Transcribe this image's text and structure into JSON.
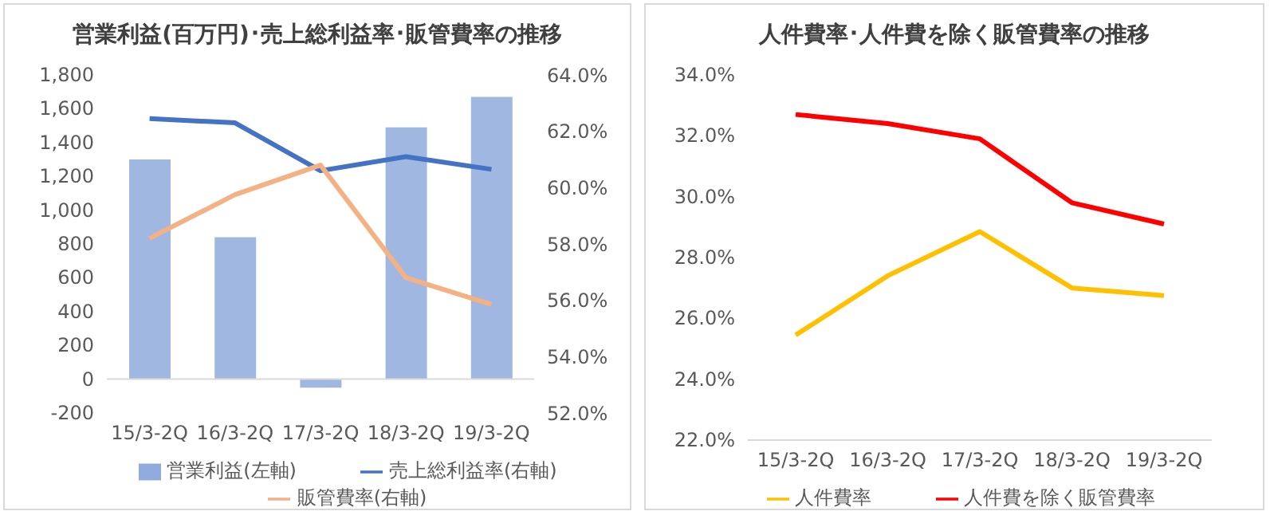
{
  "chart_data": [
    {
      "type": "bar",
      "title": "営業利益(百万円)･売上総利益率･販管費率の推移",
      "categories": [
        "15/3-2Q",
        "16/3-2Q",
        "17/3-2Q",
        "18/3-2Q",
        "19/3-2Q"
      ],
      "series": [
        {
          "name": "営業利益(左軸)",
          "color": "#8faadc",
          "values": [
            1300,
            840,
            -50,
            1490,
            1670
          ]
        },
        {
          "name": "売上総利益率(右軸)",
          "type": "line",
          "axis": "y2",
          "color": "#4472c4",
          "values": [
            62.45,
            62.3,
            60.6,
            61.1,
            60.65
          ]
        },
        {
          "name": "販管費率(右軸)",
          "type": "line",
          "axis": "y2",
          "color": "#f4b183",
          "values": [
            58.2,
            59.75,
            60.8,
            56.8,
            55.85
          ]
        }
      ],
      "ylim": [
        -200,
        1800
      ],
      "yticks": [
        {
          "value": -200,
          "label": "-200"
        },
        0,
        200,
        400,
        600,
        800,
        {
          "value": 1000,
          "label": "1,000"
        },
        {
          "value": 1200,
          "label": "1,200"
        },
        {
          "value": 1400,
          "label": "1,400"
        },
        {
          "value": 1600,
          "label": "1,600"
        },
        {
          "value": 1800,
          "label": "1,800"
        }
      ],
      "y2lim": [
        52,
        64
      ],
      "y2ticks": [
        {
          "value": 52,
          "label": "52.0%"
        },
        {
          "value": 54,
          "label": "54.0%"
        },
        {
          "value": 56,
          "label": "56.0%"
        },
        {
          "value": 58,
          "label": "58.0%"
        },
        {
          "value": 60,
          "label": "60.0%"
        },
        {
          "value": 62,
          "label": "62.0%"
        },
        {
          "value": 64,
          "label": "64.0%"
        }
      ],
      "grid": false,
      "legend": "bottom",
      "marker": "none"
    },
    {
      "type": "line",
      "title": "人件費率･人件費を除く販管費率の推移",
      "categories": [
        "15/3-2Q",
        "16/3-2Q",
        "17/3-2Q",
        "18/3-2Q",
        "19/3-2Q"
      ],
      "series": [
        {
          "name": "人件費率",
          "color": "#ffc000",
          "values": [
            25.45,
            27.4,
            28.85,
            27.0,
            26.75
          ]
        },
        {
          "name": "人件費を除く販管費率",
          "color": "#ff0000",
          "values": [
            32.7,
            32.4,
            31.9,
            29.8,
            29.1
          ]
        }
      ],
      "ylim": [
        22,
        34
      ],
      "yticks": [
        {
          "value": 22,
          "label": "22.0%"
        },
        {
          "value": 24,
          "label": "24.0%"
        },
        {
          "value": 26,
          "label": "26.0%"
        },
        {
          "value": 28,
          "label": "28.0%"
        },
        {
          "value": 30,
          "label": "30.0%"
        },
        {
          "value": 32,
          "label": "32.0%"
        },
        {
          "value": 34,
          "label": "34.0%"
        }
      ],
      "grid": false,
      "legend": "bottom",
      "marker": "none"
    }
  ]
}
